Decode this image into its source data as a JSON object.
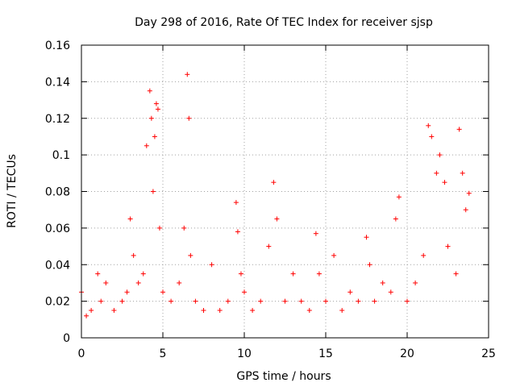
{
  "chart_data": {
    "type": "scatter",
    "title": "Day 298 of 2016, Rate Of TEC Index for receiver sjsp",
    "xlabel": "GPS time / hours",
    "ylabel": "ROTI / TECUs",
    "xlim": [
      0,
      25
    ],
    "ylim": [
      0,
      0.16
    ],
    "x_ticks": [
      0,
      5,
      10,
      15,
      20,
      25
    ],
    "x_tick_labels": [
      "0",
      "5",
      "10",
      "15",
      "20",
      "25"
    ],
    "y_ticks": [
      0,
      0.02,
      0.04,
      0.06,
      0.08,
      0.1,
      0.12,
      0.14,
      0.16
    ],
    "y_tick_labels": [
      "0",
      "0.02",
      "0.04",
      "0.06",
      "0.08",
      "0.1",
      "0.12",
      "0.14",
      "0.16"
    ],
    "grid": true,
    "marker": "+",
    "marker_color": "#ff0000",
    "series": [
      {
        "name": "ROTI",
        "x": [
          0.0,
          0.3,
          0.6,
          1.0,
          1.2,
          1.5,
          2.0,
          2.5,
          2.8,
          3.0,
          3.2,
          3.5,
          3.8,
          4.0,
          4.2,
          4.3,
          4.4,
          4.5,
          4.6,
          4.7,
          4.8,
          5.0,
          5.5,
          6.0,
          6.3,
          6.5,
          6.6,
          6.7,
          7.0,
          7.5,
          8.0,
          8.5,
          9.0,
          9.5,
          9.6,
          9.8,
          10.0,
          10.5,
          11.0,
          11.5,
          11.8,
          12.0,
          12.5,
          13.0,
          13.5,
          14.0,
          14.4,
          14.6,
          15.0,
          15.5,
          16.0,
          16.5,
          17.0,
          17.5,
          17.7,
          18.0,
          18.5,
          19.0,
          19.3,
          19.5,
          20.0,
          20.5,
          21.0,
          21.3,
          21.5,
          21.8,
          22.0,
          22.3,
          22.5,
          23.0,
          23.2,
          23.4,
          23.6,
          23.8
        ],
        "y": [
          0.025,
          0.012,
          0.015,
          0.035,
          0.02,
          0.03,
          0.015,
          0.02,
          0.025,
          0.065,
          0.045,
          0.03,
          0.035,
          0.105,
          0.135,
          0.12,
          0.08,
          0.11,
          0.128,
          0.125,
          0.06,
          0.025,
          0.02,
          0.03,
          0.06,
          0.144,
          0.12,
          0.045,
          0.02,
          0.015,
          0.04,
          0.015,
          0.02,
          0.074,
          0.058,
          0.035,
          0.025,
          0.015,
          0.02,
          0.05,
          0.085,
          0.065,
          0.02,
          0.035,
          0.02,
          0.015,
          0.057,
          0.035,
          0.02,
          0.045,
          0.015,
          0.025,
          0.02,
          0.055,
          0.04,
          0.02,
          0.03,
          0.025,
          0.065,
          0.077,
          0.02,
          0.03,
          0.045,
          0.116,
          0.11,
          0.09,
          0.1,
          0.085,
          0.05,
          0.035,
          0.114,
          0.09,
          0.07,
          0.079
        ]
      }
    ]
  }
}
